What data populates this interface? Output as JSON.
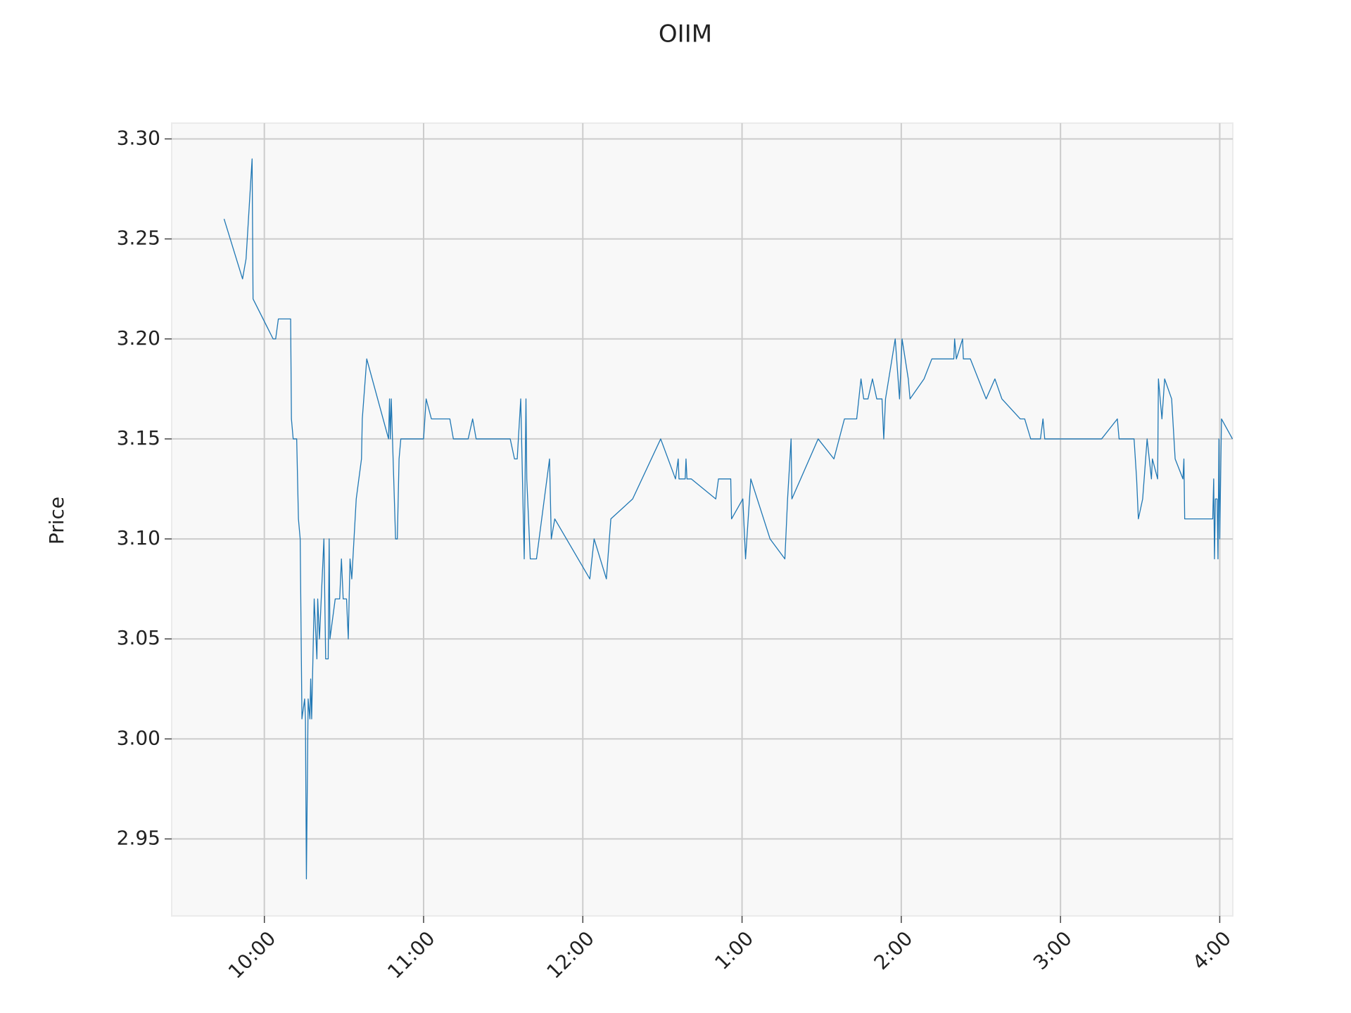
{
  "chart_data": {
    "type": "line",
    "title": "OIIM",
    "ylabel": "Price",
    "x": [
      9.747,
      9.863,
      9.885,
      9.923,
      9.929,
      10.055,
      10.071,
      10.088,
      10.165,
      10.17,
      10.181,
      10.203,
      10.214,
      10.225,
      10.236,
      10.253,
      10.258,
      10.264,
      10.275,
      10.286,
      10.291,
      10.297,
      10.313,
      10.33,
      10.335,
      10.346,
      10.374,
      10.385,
      10.401,
      10.407,
      10.412,
      10.445,
      10.473,
      10.484,
      10.495,
      10.516,
      10.527,
      10.538,
      10.549,
      10.577,
      10.61,
      10.615,
      10.643,
      10.78,
      10.786,
      10.791,
      10.797,
      10.824,
      10.835,
      10.846,
      10.857,
      11.0,
      11.016,
      11.049,
      11.165,
      11.187,
      11.28,
      11.308,
      11.33,
      11.544,
      11.571,
      11.588,
      11.61,
      11.632,
      11.643,
      11.648,
      11.67,
      11.709,
      11.791,
      11.802,
      11.824,
      12.044,
      12.071,
      12.148,
      12.176,
      12.313,
      12.489,
      12.582,
      12.599,
      12.604,
      12.643,
      12.648,
      12.654,
      12.681,
      12.835,
      12.852,
      12.929,
      12.934,
      13.005,
      13.022,
      13.055,
      13.176,
      13.269,
      13.286,
      13.308,
      13.313,
      13.478,
      13.577,
      13.643,
      13.72,
      13.747,
      13.764,
      13.791,
      13.819,
      13.846,
      13.879,
      13.89,
      13.901,
      13.962,
      13.989,
      14.005,
      14.044,
      14.055,
      14.143,
      14.192,
      14.33,
      14.335,
      14.346,
      14.385,
      14.39,
      14.434,
      14.533,
      14.588,
      14.632,
      14.747,
      14.775,
      14.813,
      14.874,
      14.89,
      14.901,
      15.258,
      15.357,
      15.368,
      15.462,
      15.478,
      15.489,
      15.516,
      15.544,
      15.571,
      15.577,
      15.61,
      15.615,
      15.637,
      15.654,
      15.698,
      15.72,
      15.769,
      15.775,
      15.78,
      15.956,
      15.962,
      15.967,
      15.973,
      15.984,
      15.989,
      15.995,
      16.0,
      16.011,
      16.08
    ],
    "values": [
      3.26,
      3.23,
      3.24,
      3.29,
      3.22,
      3.2,
      3.2,
      3.21,
      3.21,
      3.16,
      3.15,
      3.15,
      3.11,
      3.1,
      3.01,
      3.02,
      3.01,
      2.93,
      3.02,
      3.01,
      3.03,
      3.01,
      3.07,
      3.04,
      3.07,
      3.05,
      3.1,
      3.04,
      3.04,
      3.1,
      3.05,
      3.07,
      3.07,
      3.09,
      3.07,
      3.07,
      3.05,
      3.09,
      3.08,
      3.12,
      3.14,
      3.16,
      3.19,
      3.15,
      3.17,
      3.15,
      3.17,
      3.1,
      3.1,
      3.14,
      3.15,
      3.15,
      3.17,
      3.16,
      3.16,
      3.15,
      3.15,
      3.16,
      3.15,
      3.15,
      3.14,
      3.14,
      3.17,
      3.09,
      3.17,
      3.13,
      3.09,
      3.09,
      3.14,
      3.1,
      3.11,
      3.08,
      3.1,
      3.08,
      3.11,
      3.12,
      3.15,
      3.13,
      3.14,
      3.13,
      3.13,
      3.14,
      3.13,
      3.13,
      3.12,
      3.13,
      3.13,
      3.11,
      3.12,
      3.09,
      3.13,
      3.1,
      3.09,
      3.12,
      3.15,
      3.12,
      3.15,
      3.14,
      3.16,
      3.16,
      3.18,
      3.17,
      3.17,
      3.18,
      3.17,
      3.17,
      3.15,
      3.17,
      3.2,
      3.17,
      3.2,
      3.18,
      3.17,
      3.18,
      3.19,
      3.19,
      3.2,
      3.19,
      3.2,
      3.19,
      3.19,
      3.17,
      3.18,
      3.17,
      3.16,
      3.16,
      3.15,
      3.15,
      3.16,
      3.15,
      3.15,
      3.16,
      3.15,
      3.15,
      3.13,
      3.11,
      3.12,
      3.15,
      3.13,
      3.14,
      3.13,
      3.18,
      3.16,
      3.18,
      3.17,
      3.14,
      3.13,
      3.14,
      3.11,
      3.11,
      3.13,
      3.09,
      3.12,
      3.12,
      3.09,
      3.15,
      3.1,
      3.16,
      3.15
    ],
    "color": "#1f77b4",
    "xlim": [
      9.418,
      16.082
    ],
    "xticks": [
      {
        "value": 10,
        "label": "10:00"
      },
      {
        "value": 11,
        "label": "11:00"
      },
      {
        "value": 12,
        "label": "12:00"
      },
      {
        "value": 13,
        "label": "1:00"
      },
      {
        "value": 14,
        "label": "2:00"
      },
      {
        "value": 15,
        "label": "3:00"
      },
      {
        "value": 16,
        "label": "4:00"
      }
    ],
    "ylim": [
      2.9115,
      3.3079
    ],
    "yticks": [
      2.95,
      {
        "value": 3.0,
        "label": "3.00"
      },
      3.05,
      {
        "value": 3.1,
        "label": "3.10"
      },
      3.15,
      {
        "value": 3.2,
        "label": "3.20"
      },
      3.25,
      {
        "value": 3.3,
        "label": "3.30"
      }
    ],
    "grid": true
  }
}
